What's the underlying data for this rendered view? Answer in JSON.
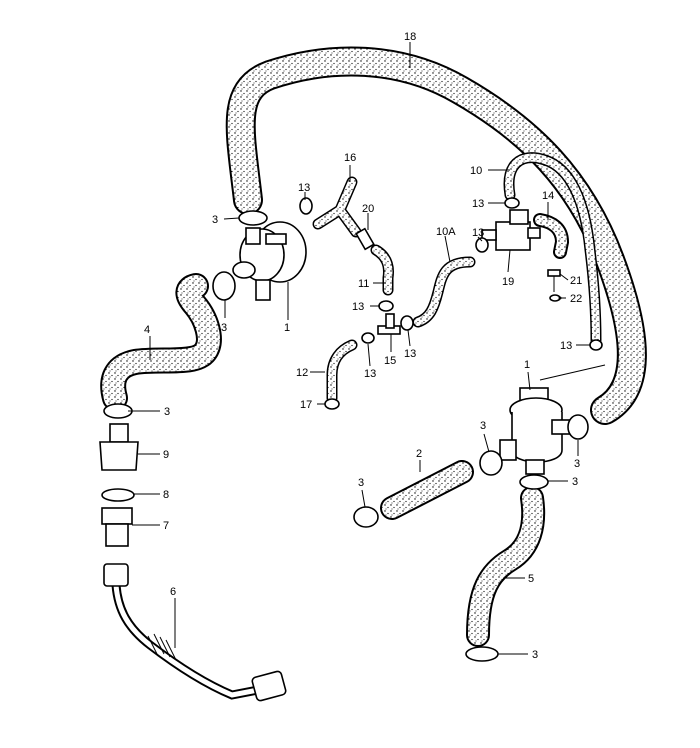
{
  "callouts": {
    "c18": "18",
    "c16": "16",
    "c10": "10",
    "c13a": "13",
    "c13b": "13",
    "c14": "14",
    "c20": "20",
    "c10a": "10A",
    "c13c": "13",
    "c3a": "3",
    "c11": "11",
    "c19": "19",
    "c21": "21",
    "c22": "22",
    "c13d": "13",
    "c3b": "3",
    "c1a": "1",
    "c4": "4",
    "c15": "15",
    "c13e": "13",
    "c13f": "13",
    "c12": "12",
    "c13g": "13",
    "c1b": "1",
    "c3c": "3",
    "c17": "17",
    "c3d": "3",
    "c2": "2",
    "c3e": "3",
    "c9": "9",
    "c3f": "3",
    "c8": "8",
    "c3g": "3",
    "c7": "7",
    "c5": "5",
    "c6": "6",
    "c3h": "3",
    "c3i": "3"
  }
}
